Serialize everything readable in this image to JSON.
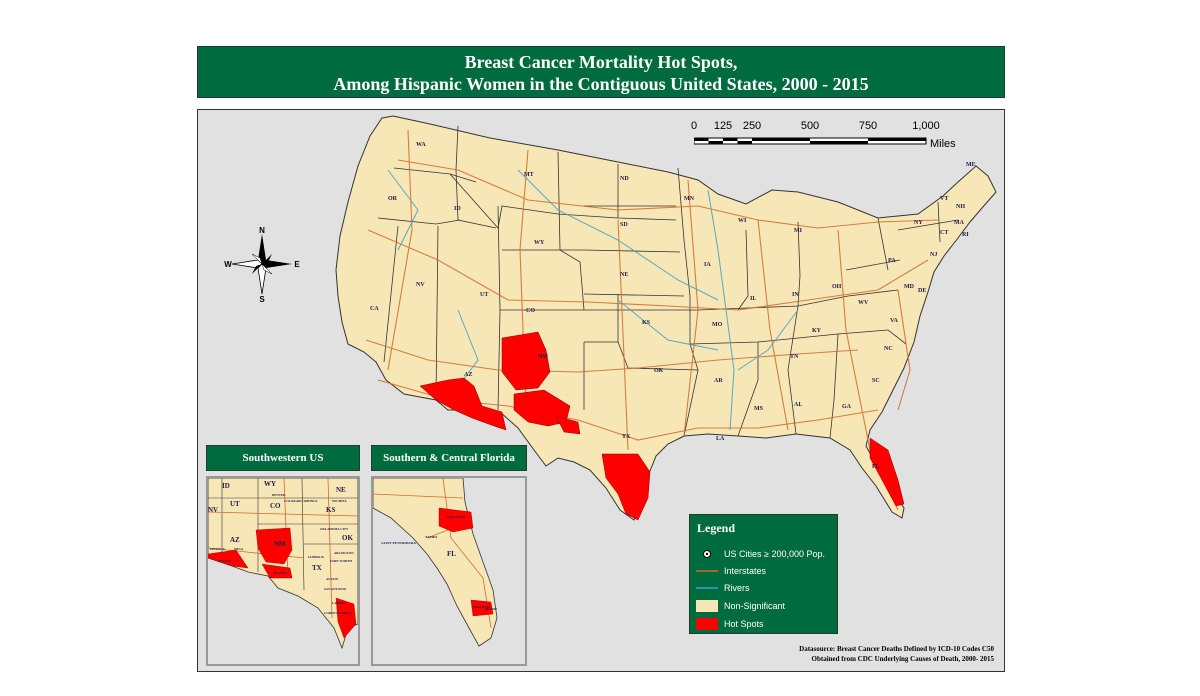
{
  "title": {
    "line1": "Breast Cancer Mortality Hot Spots,",
    "line2": "Among Hispanic Women in the Contiguous United States, 2000 - 2015"
  },
  "scale_bar": {
    "ticks": [
      "0",
      "125",
      "250",
      "500",
      "750",
      "1,000"
    ],
    "unit": "Miles"
  },
  "compass": {
    "n": "N",
    "s": "S",
    "e": "E",
    "w": "W"
  },
  "state_labels": [
    "WA",
    "MT",
    "ND",
    "OR",
    "ID",
    "MN",
    "WY",
    "SD",
    "WI",
    "MI",
    "NV",
    "UT",
    "NE",
    "IA",
    "CA",
    "CO",
    "IL",
    "IN",
    "OH",
    "KS",
    "MO",
    "WV",
    "VA",
    "KY",
    "AZ",
    "NM",
    "OK",
    "TN",
    "AR",
    "NC",
    "SC",
    "MS",
    "AL",
    "GA",
    "TX",
    "LA",
    "FL",
    "ME",
    "VT",
    "NH",
    "NY",
    "MA",
    "CT",
    "RI",
    "PA",
    "NJ",
    "MD",
    "DE"
  ],
  "insets": {
    "southwest": {
      "title": "Southwestern US",
      "labels": [
        "ID",
        "WY",
        "NE",
        "NV",
        "UT",
        "CO",
        "KS",
        "AZ",
        "NM",
        "OK",
        "TX",
        "DENVER",
        "COLORADO SPRINGS",
        "WICHITA",
        "OKLAHOMA CITY",
        "ARLINGTON",
        "PHOENIX",
        "MESA",
        "TUCSON",
        "EL PASO",
        "LUBBOCK",
        "FORT WORTH",
        "AUSTIN",
        "SAN ANTONIO",
        "CORPUS CHRISTI",
        "LAREDO"
      ]
    },
    "florida": {
      "title": "Southern & Central Florida",
      "labels": [
        "ORLANDO",
        "SAINT PETERSBURG",
        "TAMPA",
        "FL",
        "HIALEAH",
        "MIAMI"
      ]
    }
  },
  "legend": {
    "title": "Legend",
    "items": [
      {
        "symbol": "city-point",
        "label": "US Cities ≥ 200,000 Pop."
      },
      {
        "symbol": "interstate-line",
        "label": "Interstates"
      },
      {
        "symbol": "river-line",
        "label": "Rivers"
      },
      {
        "symbol": "non-significant-fill",
        "label": "Non-Significant"
      },
      {
        "symbol": "hot-spot-fill",
        "label": "Hot Spots"
      }
    ]
  },
  "colors": {
    "header_green": "#006b3f",
    "land": "#f7e7b6",
    "hot_spot": "#ff0000",
    "interstate": "#d36a2a",
    "river": "#4a9fc8",
    "border": "#333333",
    "background": "#e1e1e1"
  },
  "datasource": {
    "line1": "Datasource: Breast Cancer Deaths Defined by ICD-10 Codes C50",
    "line2": "Obtained from CDC Underlying Causes of Death, 2000- 2015"
  }
}
